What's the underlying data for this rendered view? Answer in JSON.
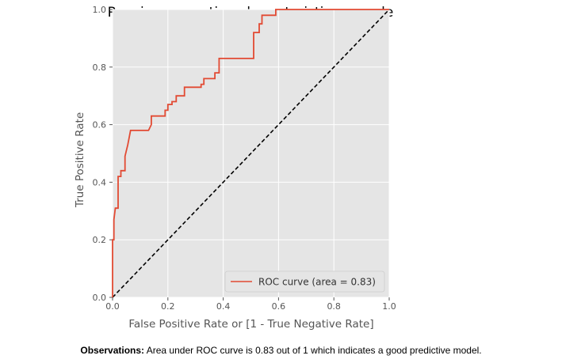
{
  "chart_data": {
    "type": "line",
    "title": "Receiver operating characteristic example",
    "xlabel": "False Positive Rate or [1 - True Negative Rate]",
    "ylabel": "True Positive Rate",
    "xlim": [
      0.0,
      1.0
    ],
    "ylim": [
      0.0,
      1.0
    ],
    "xticks": [
      "0.0",
      "0.2",
      "0.4",
      "0.6",
      "0.8",
      "1.0"
    ],
    "yticks": [
      "0.0",
      "0.2",
      "0.4",
      "0.6",
      "0.8",
      "1.0"
    ],
    "grid": true,
    "legend_position": "lower-right",
    "series": [
      {
        "name": "ROC curve (area = 0.83)",
        "color": "#E24A33",
        "style": "solid",
        "x": [
          0.0,
          0.0,
          0.0,
          0.005,
          0.005,
          0.01,
          0.01,
          0.02,
          0.02,
          0.03,
          0.03,
          0.045,
          0.045,
          0.055,
          0.065,
          0.065,
          0.13,
          0.14,
          0.14,
          0.19,
          0.19,
          0.2,
          0.2,
          0.215,
          0.215,
          0.23,
          0.23,
          0.26,
          0.26,
          0.32,
          0.32,
          0.33,
          0.33,
          0.37,
          0.37,
          0.385,
          0.385,
          0.51,
          0.51,
          0.53,
          0.53,
          0.54,
          0.54,
          0.59,
          0.59,
          1.0
        ],
        "y": [
          0.0,
          0.03,
          0.2,
          0.2,
          0.27,
          0.31,
          0.31,
          0.31,
          0.42,
          0.42,
          0.44,
          0.44,
          0.49,
          0.53,
          0.58,
          0.58,
          0.58,
          0.6,
          0.63,
          0.63,
          0.65,
          0.65,
          0.67,
          0.67,
          0.68,
          0.68,
          0.7,
          0.7,
          0.73,
          0.73,
          0.74,
          0.74,
          0.76,
          0.76,
          0.78,
          0.78,
          0.83,
          0.83,
          0.92,
          0.92,
          0.95,
          0.95,
          0.98,
          0.98,
          1.0,
          1.0
        ]
      },
      {
        "name": "",
        "color": "#000000",
        "style": "dashed",
        "x": [
          0.0,
          1.0
        ],
        "y": [
          0.0,
          1.0
        ]
      }
    ]
  },
  "observation": {
    "label": "Observations:",
    "text": " Area under ROC curve is 0.83 out of 1 which indicates a good predictive model."
  }
}
